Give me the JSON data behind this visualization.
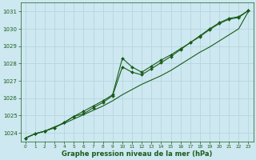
{
  "background_color": "#cde8f0",
  "grid_color": "#b8d8e0",
  "line_color": "#1a5c1a",
  "marker_color": "#1a5c1a",
  "xlabel": "Graphe pression niveau de la mer (hPa)",
  "xlabel_color": "#1a5c1a",
  "tick_color": "#1a5c1a",
  "xlim": [
    -0.5,
    23.5
  ],
  "ylim": [
    1023.5,
    1031.5
  ],
  "yticks": [
    1024,
    1025,
    1026,
    1027,
    1028,
    1029,
    1030,
    1031
  ],
  "xticks": [
    0,
    1,
    2,
    3,
    4,
    5,
    6,
    7,
    8,
    9,
    10,
    11,
    12,
    13,
    14,
    15,
    16,
    17,
    18,
    19,
    20,
    21,
    22,
    23
  ],
  "series_straight": {
    "x": [
      0,
      1,
      2,
      3,
      4,
      5,
      6,
      7,
      8,
      9,
      10,
      11,
      12,
      13,
      14,
      15,
      16,
      17,
      18,
      19,
      20,
      21,
      22,
      23
    ],
    "y": [
      1023.7,
      1023.95,
      1024.1,
      1024.35,
      1024.55,
      1024.8,
      1025.05,
      1025.3,
      1025.55,
      1025.85,
      1026.2,
      1026.5,
      1026.8,
      1027.05,
      1027.3,
      1027.6,
      1027.95,
      1028.3,
      1028.65,
      1028.95,
      1029.3,
      1029.65,
      1030.0,
      1031.0
    ]
  },
  "series_upper": {
    "x": [
      0,
      1,
      2,
      3,
      4,
      5,
      6,
      7,
      8,
      9,
      10,
      11,
      12,
      13,
      14,
      15,
      16,
      17,
      18,
      19,
      20,
      21,
      22,
      23
    ],
    "y": [
      1023.7,
      1023.95,
      1024.1,
      1024.3,
      1024.6,
      1024.95,
      1025.25,
      1025.55,
      1025.85,
      1026.2,
      1028.3,
      1027.8,
      1027.5,
      1027.85,
      1028.2,
      1028.5,
      1028.85,
      1029.2,
      1029.6,
      1030.0,
      1030.35,
      1030.6,
      1030.7,
      1031.05
    ]
  },
  "series_lower": {
    "x": [
      0,
      1,
      2,
      3,
      4,
      5,
      6,
      7,
      8,
      9,
      10,
      11,
      12,
      13,
      14,
      15,
      16,
      17,
      18,
      19,
      20,
      21,
      22,
      23
    ],
    "y": [
      1023.7,
      1023.95,
      1024.1,
      1024.3,
      1024.6,
      1024.95,
      1025.1,
      1025.45,
      1025.75,
      1026.15,
      1027.8,
      1027.5,
      1027.35,
      1027.7,
      1028.05,
      1028.4,
      1028.8,
      1029.2,
      1029.55,
      1029.95,
      1030.3,
      1030.55,
      1030.65,
      1031.05
    ]
  }
}
